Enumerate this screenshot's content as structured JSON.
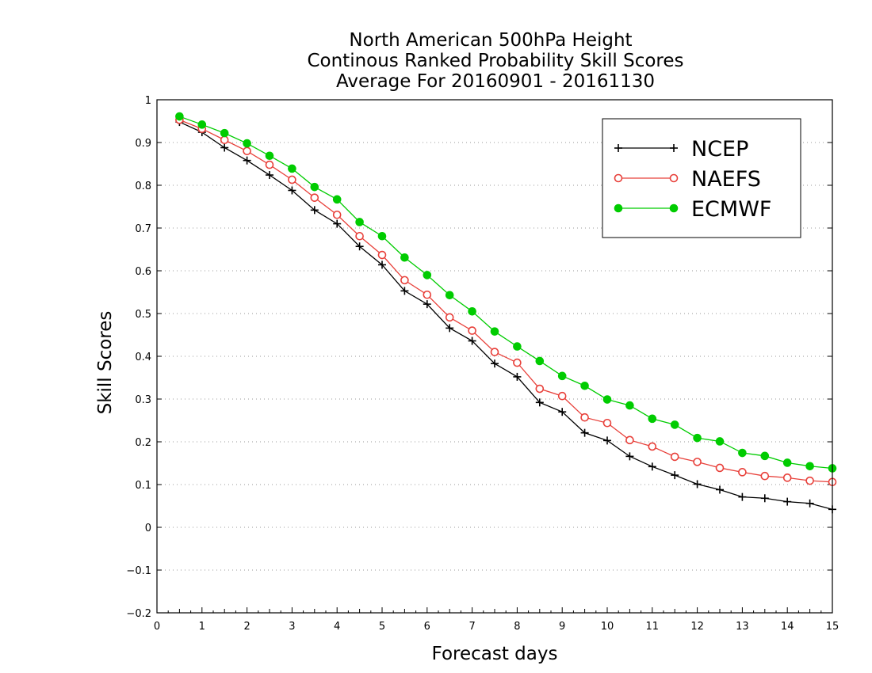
{
  "chart_data": {
    "type": "line",
    "title": [
      "North American 500hPa Height",
      "Continous Ranked Probability Skill Scores",
      "Average For 20160901 - 20161130"
    ],
    "xlabel": "Forecast days",
    "ylabel": "Skill Scores",
    "xlim": [
      0,
      15
    ],
    "ylim": [
      -0.2,
      1
    ],
    "xticks": [
      "0",
      "1",
      "2",
      "3",
      "4",
      "5",
      "6",
      "7",
      "8",
      "9",
      "10",
      "11",
      "12",
      "13",
      "14",
      "15"
    ],
    "yticks": [
      "−0.2",
      "−0.1",
      "0",
      "0.1",
      "0.2",
      "0.3",
      "0.4",
      "0.5",
      "0.6",
      "0.7",
      "0.8",
      "0.9",
      "1"
    ],
    "grid": "horizontal dotted",
    "legend_position": "top-right",
    "x": [
      0.5,
      1,
      1.5,
      2,
      2.5,
      3,
      3.5,
      4,
      4.5,
      5,
      5.5,
      6,
      6.5,
      7,
      7.5,
      8,
      8.5,
      9,
      9.5,
      10,
      10.5,
      11,
      11.5,
      12,
      12.5,
      13,
      13.5,
      14,
      14.5,
      15
    ],
    "series": [
      {
        "name": "NCEP",
        "color": "#000000",
        "marker": "plus",
        "values": [
          0.948,
          0.924,
          0.888,
          0.858,
          0.824,
          0.788,
          0.742,
          0.71,
          0.657,
          0.614,
          0.553,
          0.522,
          0.466,
          0.436,
          0.383,
          0.352,
          0.292,
          0.27,
          0.221,
          0.203,
          0.166,
          0.142,
          0.122,
          0.101,
          0.088,
          0.071,
          0.068,
          0.06,
          0.056,
          0.042
        ]
      },
      {
        "name": "NAEFS",
        "color": "#e8403a",
        "marker": "open-circle",
        "values": [
          0.953,
          0.932,
          0.906,
          0.88,
          0.848,
          0.813,
          0.771,
          0.731,
          0.681,
          0.637,
          0.578,
          0.544,
          0.491,
          0.46,
          0.41,
          0.385,
          0.324,
          0.307,
          0.257,
          0.244,
          0.204,
          0.189,
          0.165,
          0.153,
          0.139,
          0.129,
          0.12,
          0.116,
          0.109,
          0.106
        ]
      },
      {
        "name": "ECMWF",
        "color": "#00cc00",
        "marker": "filled-circle",
        "values": [
          0.961,
          0.942,
          0.922,
          0.898,
          0.869,
          0.839,
          0.796,
          0.767,
          0.714,
          0.681,
          0.631,
          0.59,
          0.543,
          0.505,
          0.458,
          0.423,
          0.389,
          0.354,
          0.331,
          0.299,
          0.285,
          0.254,
          0.24,
          0.209,
          0.201,
          0.174,
          0.167,
          0.151,
          0.143,
          0.138
        ]
      }
    ]
  }
}
